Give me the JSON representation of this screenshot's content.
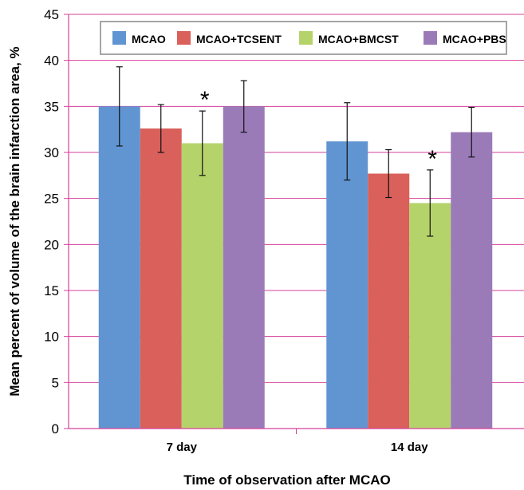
{
  "chart_data": {
    "type": "bar",
    "title": "",
    "xlabel": "Time of observation after MCAO",
    "ylabel": "Mean percent of volume of the brain infarction area, %",
    "categories": [
      "7 day",
      "14 day"
    ],
    "ylim": [
      0,
      45
    ],
    "yticks": [
      0,
      5,
      10,
      15,
      20,
      25,
      30,
      35,
      40,
      45
    ],
    "grid": true,
    "legend_position": "top",
    "series": [
      {
        "name": "MCAO",
        "color": "#6095d2",
        "values": [
          35.0,
          31.2
        ],
        "errors": [
          4.3,
          4.2
        ]
      },
      {
        "name": "MCAO+TCSENT",
        "color": "#d9605b",
        "values": [
          32.6,
          27.7
        ],
        "errors": [
          2.6,
          2.6
        ]
      },
      {
        "name": "MCAO+BMCST",
        "color": "#b5d36b",
        "values": [
          31.0,
          24.5
        ],
        "errors": [
          3.5,
          3.6
        ]
      },
      {
        "name": "MCAO+PBS",
        "color": "#9a7bb8",
        "values": [
          35.0,
          32.2
        ],
        "errors": [
          2.8,
          2.7
        ]
      }
    ],
    "annotations": [
      {
        "text": "*",
        "category": "7 day",
        "series": "MCAO+BMCST"
      },
      {
        "text": "*",
        "category": "14 day",
        "series": "MCAO+BMCST"
      }
    ],
    "style": {
      "grid_color": "#d6409b",
      "axis_color": "#d6409b",
      "legend_border": "#888888"
    }
  }
}
